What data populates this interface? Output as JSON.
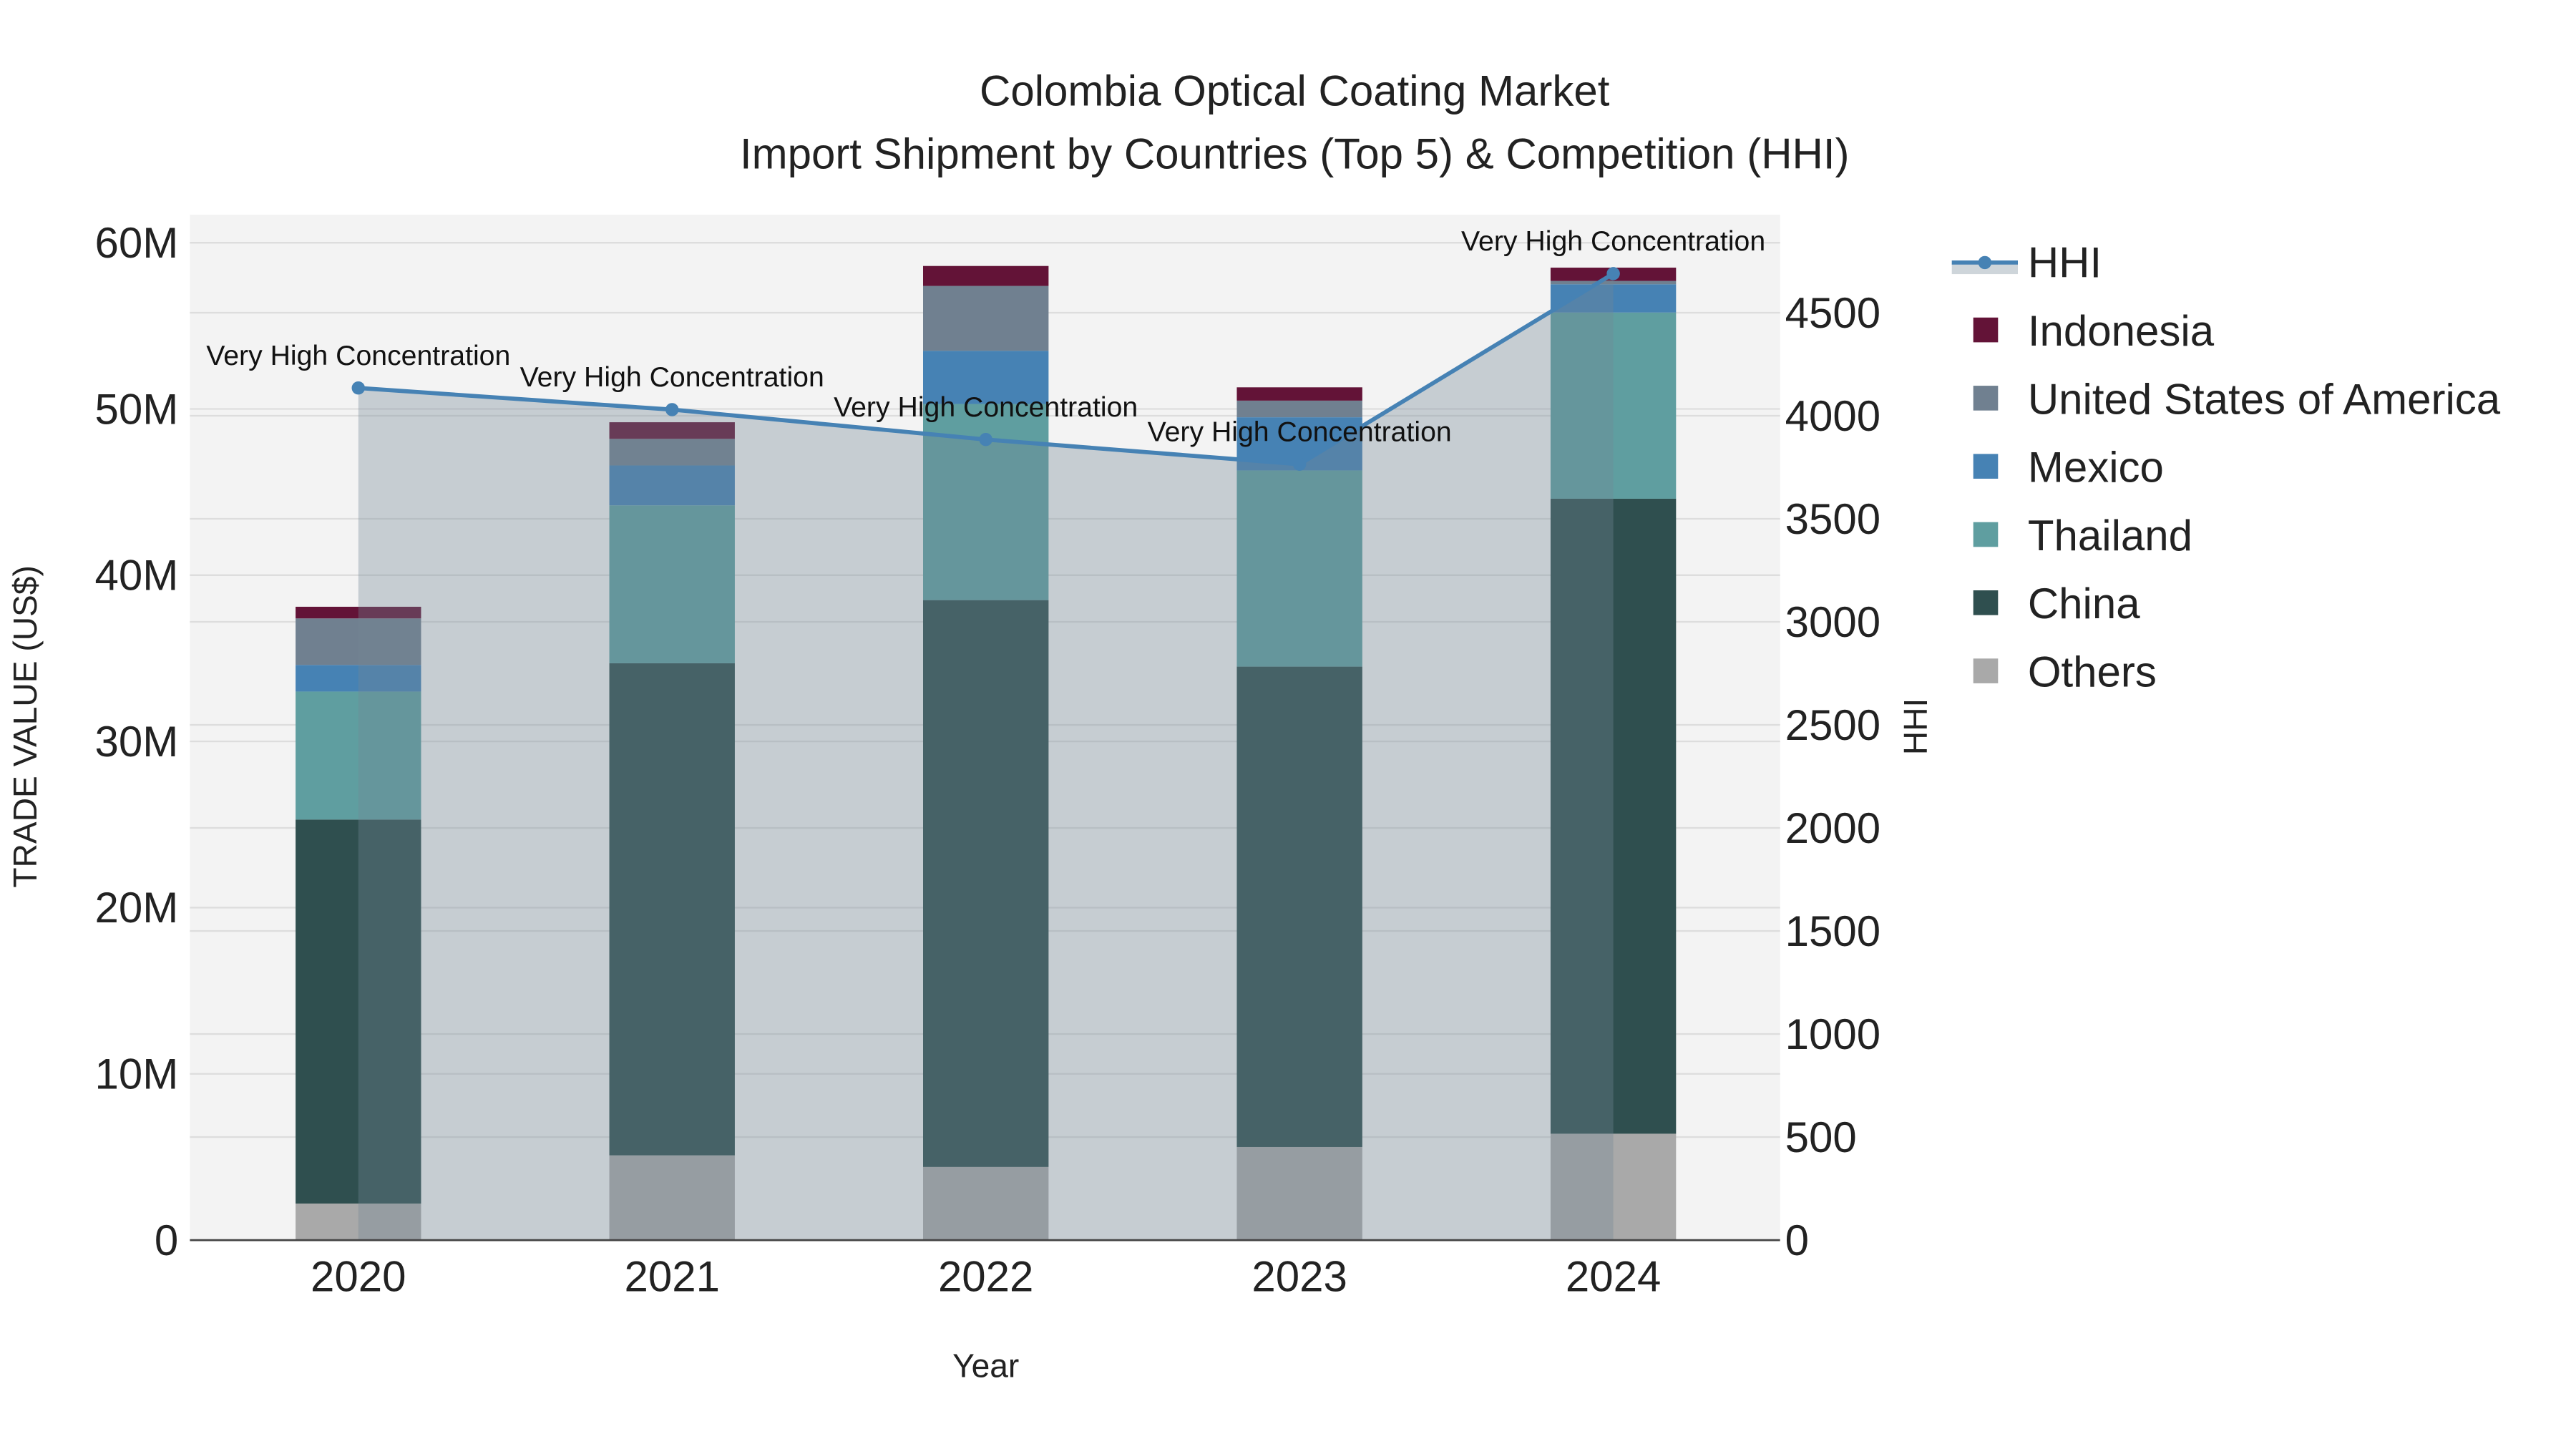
{
  "chart_data": {
    "type": "bar",
    "title": "Colombia Optical Coating Market",
    "subtitle": "Import Shipment by Countries (Top 5) & Competition (HHI)",
    "xlabel": "Year",
    "ylabel": "TRADE VALUE (US$)",
    "y2label": "HHI",
    "categories": [
      "2020",
      "2021",
      "2022",
      "2023",
      "2024"
    ],
    "ylim": [
      0,
      61500000
    ],
    "y2lim": [
      0,
      4930
    ],
    "yticks": [
      0,
      10000000,
      20000000,
      30000000,
      40000000,
      50000000,
      60000000
    ],
    "ytick_labels": [
      "0",
      "10M",
      "20M",
      "30M",
      "40M",
      "50M",
      "60M"
    ],
    "y2ticks": [
      0,
      500,
      1000,
      1500,
      2000,
      2500,
      3000,
      3500,
      4000,
      4500
    ],
    "y2tick_labels": [
      "0",
      "500",
      "1000",
      "1500",
      "2000",
      "2500",
      "3000",
      "3500",
      "4000",
      "4500"
    ],
    "grid": true,
    "legend_placement": "right",
    "stacked_series": [
      {
        "name": "Others",
        "color": "#a9a9a9",
        "values": [
          2200000,
          5100000,
          4400000,
          5600000,
          6400000
        ]
      },
      {
        "name": "China",
        "color": "#2f4f4f",
        "values": [
          23100000,
          29600000,
          34100000,
          28900000,
          38200000
        ]
      },
      {
        "name": "Thailand",
        "color": "#5f9ea0",
        "values": [
          7700000,
          9500000,
          11800000,
          11800000,
          11200000
        ]
      },
      {
        "name": "Mexico",
        "color": "#4682b4",
        "values": [
          1600000,
          2400000,
          3200000,
          3200000,
          1700000
        ]
      },
      {
        "name": "United States of America",
        "color": "#708090",
        "values": [
          2800000,
          1600000,
          3900000,
          1000000,
          200000
        ]
      },
      {
        "name": "Indonesia",
        "color": "#631337",
        "values": [
          700000,
          1000000,
          1200000,
          800000,
          800000
        ]
      }
    ],
    "line_series": {
      "name": "HHI",
      "color": "#4682b4",
      "values": [
        4135,
        4030,
        3885,
        3765,
        4690
      ],
      "annotations": [
        "Very High Concentration",
        "Very High Concentration",
        "Very High Concentration",
        "Very High Concentration",
        "Very High Concentration"
      ]
    },
    "legend_order": [
      "HHI",
      "Indonesia",
      "United States of America",
      "Mexico",
      "Thailand",
      "China",
      "Others"
    ]
  }
}
